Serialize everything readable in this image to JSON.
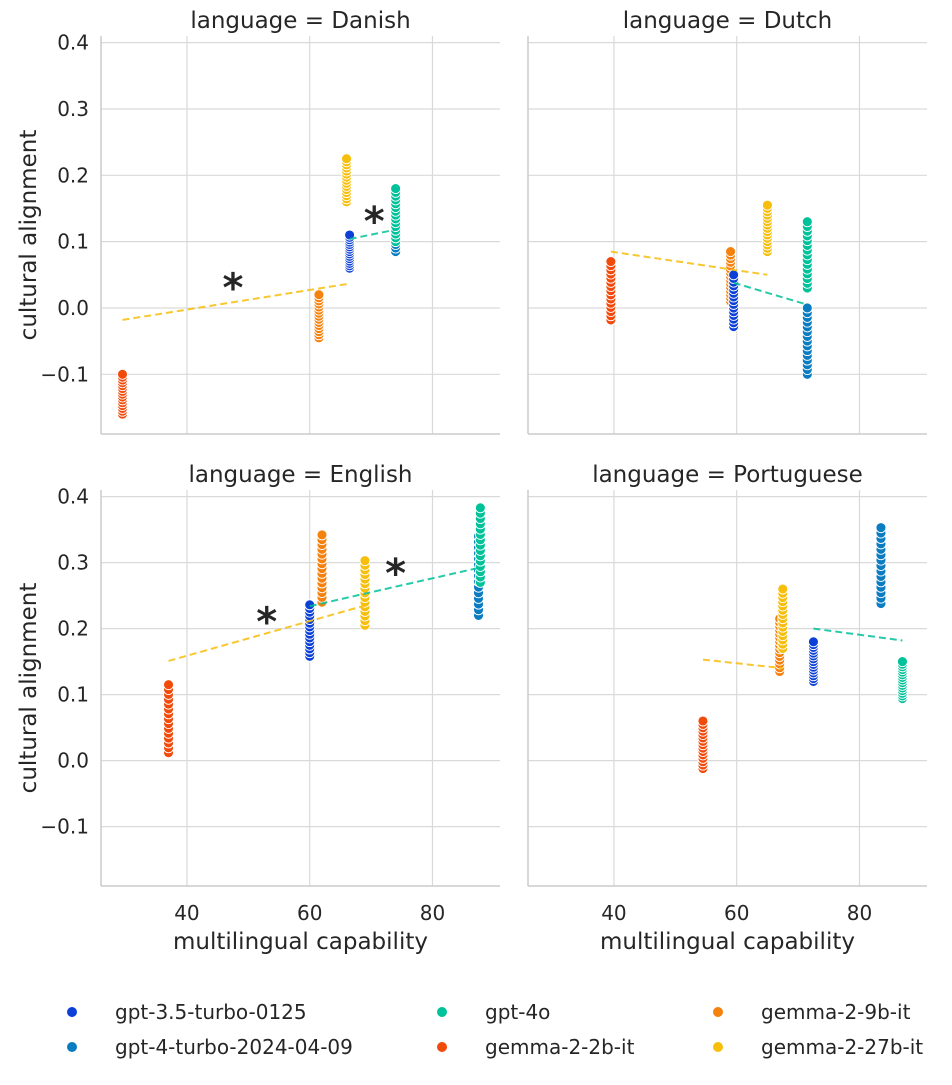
{
  "chart_data": {
    "type": "scatter",
    "facet": "language",
    "facet_title_prefix": "language = ",
    "xlabel": "multilingual capability",
    "ylabel": "cultural alignment",
    "xlim": [
      26,
      91
    ],
    "ylim": [
      -0.19,
      0.41
    ],
    "xticks": [
      40,
      60,
      80
    ],
    "yticks": [
      -0.1,
      0.0,
      0.1,
      0.2,
      0.3,
      0.4
    ],
    "xtick_labels": [
      "40",
      "60",
      "80"
    ],
    "ytick_labels": [
      "−0.1",
      "0.0",
      "0.1",
      "0.2",
      "0.3",
      "0.4"
    ],
    "grid": true,
    "legend_position": "bottom",
    "series": [
      {
        "name": "gpt-3.5-turbo-0125",
        "color": "#0b3fd6"
      },
      {
        "name": "gpt-4-turbo-2024-04-09",
        "color": "#0a7cc2"
      },
      {
        "name": "gpt-4o",
        "color": "#00c29a"
      },
      {
        "name": "gemma-2-2b-it",
        "color": "#f24a0a"
      },
      {
        "name": "gemma-2-9b-it",
        "color": "#f5820e"
      },
      {
        "name": "gemma-2-27b-it",
        "color": "#f7be0c"
      }
    ],
    "panels": [
      {
        "language": "Danish",
        "groups": [
          {
            "series": "gemma-2-2b-it",
            "x": 29.5,
            "y_min": -0.16,
            "y_max": -0.1
          },
          {
            "series": "gemma-2-9b-it",
            "x": 61.5,
            "y_min": -0.045,
            "y_max": 0.02
          },
          {
            "series": "gemma-2-27b-it",
            "x": 66.0,
            "y_min": 0.16,
            "y_max": 0.225
          },
          {
            "series": "gpt-3.5-turbo-0125",
            "x": 66.5,
            "y_min": 0.06,
            "y_max": 0.11
          },
          {
            "series": "gpt-4-turbo-2024-04-09",
            "x": 74.0,
            "y_min": 0.085,
            "y_max": 0.16
          },
          {
            "series": "gpt-4o",
            "x": 74.0,
            "y_min": 0.1,
            "y_max": 0.18
          }
        ],
        "trendlines": [
          {
            "family": "gemma",
            "color": "#f7be0c",
            "x": [
              29.5,
              66.0
            ],
            "y": [
              -0.018,
              0.036
            ]
          },
          {
            "family": "gpt",
            "color": "#00c29a",
            "x": [
              66.5,
              74.0
            ],
            "y": [
              0.104,
              0.118
            ]
          }
        ],
        "markers": [
          {
            "family": "gemma",
            "color": "#f7be0c",
            "x": 47.5,
            "y": 0.04
          },
          {
            "family": "gpt",
            "color": "#00c29a",
            "x": 70.5,
            "y": 0.14
          }
        ]
      },
      {
        "language": "Dutch",
        "groups": [
          {
            "series": "gemma-2-2b-it",
            "x": 39.5,
            "y_min": -0.018,
            "y_max": 0.07
          },
          {
            "series": "gemma-2-9b-it",
            "x": 59.0,
            "y_min": 0.01,
            "y_max": 0.085
          },
          {
            "series": "gpt-3.5-turbo-0125",
            "x": 59.5,
            "y_min": -0.028,
            "y_max": 0.05
          },
          {
            "series": "gemma-2-27b-it",
            "x": 65.0,
            "y_min": 0.085,
            "y_max": 0.155
          },
          {
            "series": "gpt-4o",
            "x": 71.5,
            "y_min": 0.03,
            "y_max": 0.13
          },
          {
            "series": "gpt-4-turbo-2024-04-09",
            "x": 71.5,
            "y_min": -0.1,
            "y_max": 0.0
          }
        ],
        "trendlines": [
          {
            "family": "gemma",
            "color": "#f7be0c",
            "x": [
              39.5,
              65.0
            ],
            "y": [
              0.085,
              0.05
            ]
          },
          {
            "family": "gpt",
            "color": "#00c29a",
            "x": [
              59.5,
              71.5
            ],
            "y": [
              0.038,
              0.005
            ]
          }
        ],
        "markers": []
      },
      {
        "language": "English",
        "groups": [
          {
            "series": "gemma-2-2b-it",
            "x": 37.0,
            "y_min": 0.012,
            "y_max": 0.115
          },
          {
            "series": "gpt-3.5-turbo-0125",
            "x": 60.0,
            "y_min": 0.158,
            "y_max": 0.236
          },
          {
            "series": "gemma-2-9b-it",
            "x": 62.0,
            "y_min": 0.24,
            "y_max": 0.342
          },
          {
            "series": "gemma-2-27b-it",
            "x": 69.0,
            "y_min": 0.205,
            "y_max": 0.303
          },
          {
            "series": "gpt-4-turbo-2024-04-09",
            "x": 87.5,
            "y_min": 0.22,
            "y_max": 0.34
          },
          {
            "series": "gpt-4o",
            "x": 87.8,
            "y_min": 0.27,
            "y_max": 0.383
          }
        ],
        "trendlines": [
          {
            "family": "gemma",
            "color": "#f7be0c",
            "x": [
              37.0,
              69.0
            ],
            "y": [
              0.151,
              0.235
            ]
          },
          {
            "family": "gpt",
            "color": "#00c29a",
            "x": [
              60.0,
              87.5
            ],
            "y": [
              0.234,
              0.292
            ]
          }
        ],
        "markers": [
          {
            "family": "gemma",
            "color": "#f7be0c",
            "x": 53.0,
            "y": 0.22
          },
          {
            "family": "gpt",
            "color": "#00c29a",
            "x": 74.0,
            "y": 0.293
          }
        ]
      },
      {
        "language": "Portuguese",
        "groups": [
          {
            "series": "gemma-2-2b-it",
            "x": 54.5,
            "y_min": -0.012,
            "y_max": 0.06
          },
          {
            "series": "gemma-2-9b-it",
            "x": 67.0,
            "y_min": 0.135,
            "y_max": 0.215
          },
          {
            "series": "gemma-2-27b-it",
            "x": 67.5,
            "y_min": 0.17,
            "y_max": 0.26
          },
          {
            "series": "gpt-3.5-turbo-0125",
            "x": 72.5,
            "y_min": 0.12,
            "y_max": 0.18
          },
          {
            "series": "gpt-4-turbo-2024-04-09",
            "x": 83.5,
            "y_min": 0.238,
            "y_max": 0.353
          },
          {
            "series": "gpt-4o",
            "x": 87.0,
            "y_min": 0.094,
            "y_max": 0.15
          }
        ],
        "trendlines": [
          {
            "family": "gemma",
            "color": "#f7be0c",
            "x": [
              54.5,
              67.5
            ],
            "y": [
              0.153,
              0.14
            ]
          },
          {
            "family": "gpt",
            "color": "#00c29a",
            "x": [
              72.5,
              87.0
            ],
            "y": [
              0.2,
              0.182
            ]
          }
        ],
        "markers": []
      }
    ]
  }
}
